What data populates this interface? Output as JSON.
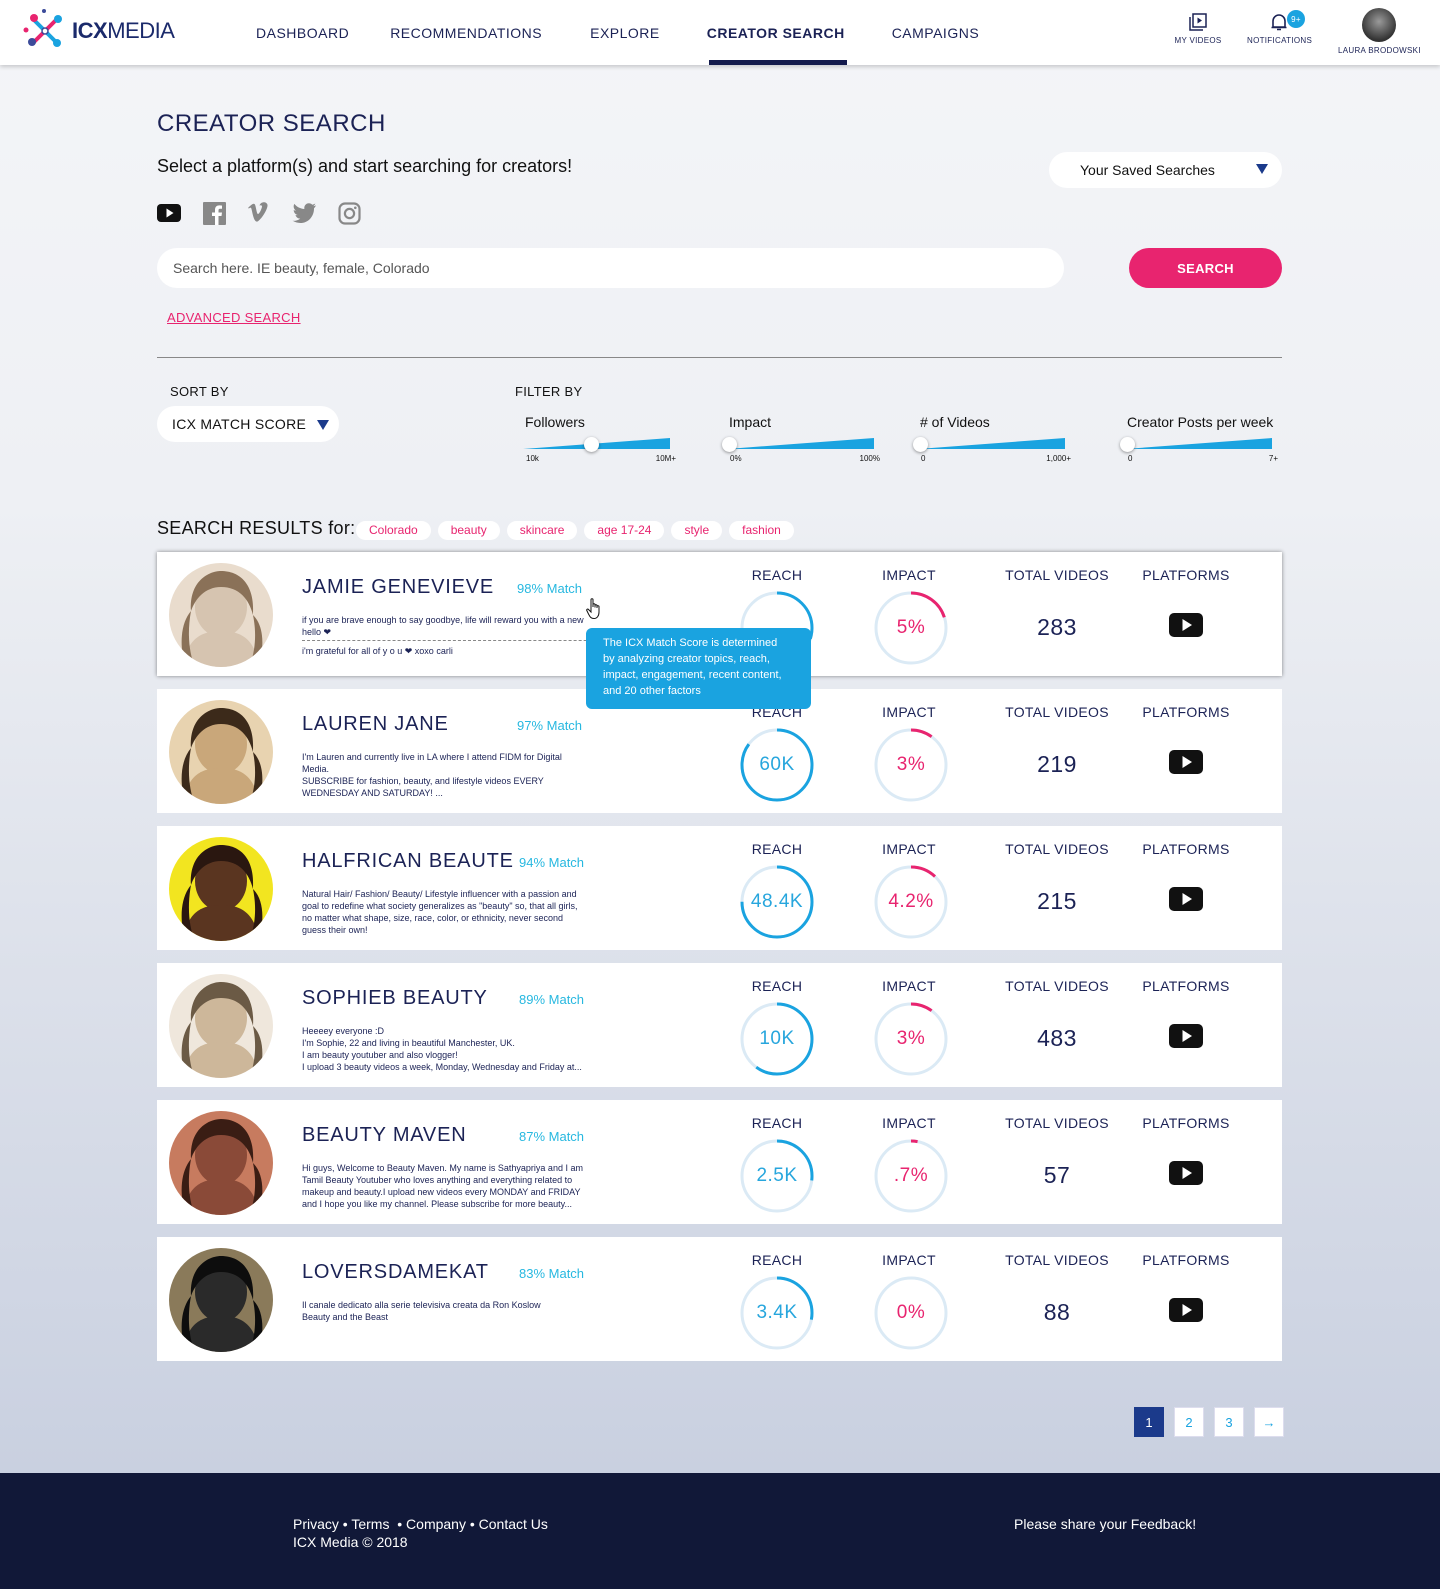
{
  "header": {
    "logo_text_bold": "ICX",
    "logo_text_rest": "MEDIA",
    "nav": [
      {
        "label": "DASHBOARD"
      },
      {
        "label": "RECOMMENDATIONS"
      },
      {
        "label": "EXPLORE"
      },
      {
        "label": "CREATOR SEARCH",
        "active": true
      },
      {
        "label": "CAMPAIGNS"
      }
    ],
    "my_videos_label": "MY VIDEOS",
    "notifications_label": "NOTIFICATIONS",
    "notifications_badge": "9+",
    "user_name": "LAURA BRODOWSKI"
  },
  "page": {
    "title": "CREATOR SEARCH",
    "subtitle": "Select a platform(s) and start searching for creators!",
    "saved_searches": "Your Saved Searches",
    "platform_icons": [
      "youtube-icon",
      "facebook-icon",
      "vimeo-icon",
      "twitter-icon",
      "instagram-icon"
    ],
    "search_placeholder": "Search here. IE beauty, female, Colorado",
    "search_button": "SEARCH",
    "advanced_search": "ADVANCED SEARCH"
  },
  "sort": {
    "label": "SORT BY",
    "value": "ICX MATCH SCORE"
  },
  "filter": {
    "label": "FILTER BY",
    "sliders": [
      {
        "name": "Followers",
        "min": "10k",
        "max": "10M+",
        "level": 0.45
      },
      {
        "name": "Impact",
        "min": "0%",
        "max": "100%",
        "level": 0.0
      },
      {
        "name": "# of Videos",
        "min": "0",
        "max": "1,000+",
        "level": 0.0
      },
      {
        "name": "Creator Posts per week",
        "min": "0",
        "max": "7+",
        "level": 0.0
      }
    ]
  },
  "results": {
    "label": "SEARCH RESULTS for:",
    "tags": [
      "Colorado",
      "beauty",
      "skincare",
      "age 17-24",
      "style",
      "fashion"
    ]
  },
  "metric_labels": {
    "reach": "REACH",
    "impact": "IMPACT",
    "total_videos": "TOTAL VIDEOS",
    "platforms": "PLATFORMS"
  },
  "creators": [
    {
      "name": "JAMIE GENEVIEVE",
      "match": "98% Match",
      "bio_lines": [
        "if you are brave enough to say goodbye, life will reward you with a new",
        "hello ❤",
        "i'm grateful for all of  y o u  ❤ xoxo carli"
      ],
      "reach": "",
      "reach_fill": 0.3,
      "impact": "5%",
      "impact_fill": 0.2,
      "total_videos": "283",
      "colors": [
        "#d6c4b0",
        "#8a7158",
        "#e9dccd"
      ]
    },
    {
      "name": "LAUREN JANE",
      "match": "97% Match",
      "bio_lines": [
        "I'm Lauren and currently live in LA where I attend FIDM for Digital",
        "Media.",
        "SUBSCRIBE for fashion, beauty, and lifestyle videos EVERY",
        "WEDNESDAY AND SATURDAY! ..."
      ],
      "reach": "60K",
      "reach_fill": 0.85,
      "impact": "3%",
      "impact_fill": 0.1,
      "total_videos": "219",
      "colors": [
        "#c9a77a",
        "#3c2a1a",
        "#e8d3b0"
      ]
    },
    {
      "name": "HALFRICAN BEAUTE",
      "match": "94% Match",
      "bio_lines": [
        "Natural Hair/ Fashion/ Beauty/ Lifestyle influencer with a passion and",
        "goal to redefine what society generalizes as \"beauty\" so, that all girls,",
        "no matter what shape, size, race, color, or ethnicity, never second",
        "guess their own!"
      ],
      "reach": "48.4K",
      "reach_fill": 0.75,
      "impact": "4.2%",
      "impact_fill": 0.12,
      "total_videos": "215",
      "colors": [
        "#5a3520",
        "#2a1710",
        "#f2e520"
      ]
    },
    {
      "name": "SOPHIEB BEAUTY",
      "match": "89% Match",
      "bio_lines": [
        "Heeeey everyone :D",
        "I'm Sophie, 22 and living in beautiful Manchester, UK.",
        "I am beauty youtuber and also vlogger!",
        "I upload 3 beauty videos a week, Monday, Wednesday and Friday at..."
      ],
      "reach": "10K",
      "reach_fill": 0.6,
      "impact": "3%",
      "impact_fill": 0.1,
      "total_videos": "483",
      "colors": [
        "#cdb79a",
        "#6b5a45",
        "#efe7dc"
      ]
    },
    {
      "name": "BEAUTY MAVEN",
      "match": "87% Match",
      "bio_lines": [
        "Hi guys, Welcome to Beauty Maven. My name is Sathyapriya and I am",
        "Tamil Beauty Youtuber who loves anything and everything related to",
        "makeup and beauty.I upload new videos every MONDAY and FRIDAY",
        "and I hope you like my channel. Please subscribe for more beauty..."
      ],
      "reach": "2.5K",
      "reach_fill": 0.27,
      "impact": ".7%",
      "impact_fill": 0.03,
      "total_videos": "57",
      "colors": [
        "#8a4a38",
        "#3a1d14",
        "#c77b5f"
      ]
    },
    {
      "name": "LOVERSDAMEKAT",
      "match": "83% Match",
      "bio_lines": [
        "Il canale dedicato alla serie televisiva creata da Ron Koslow",
        "Beauty and the Beast"
      ],
      "reach": "3.4K",
      "reach_fill": 0.28,
      "impact": "0%",
      "impact_fill": 0.0,
      "total_videos": "88",
      "colors": [
        "#2a2a2a",
        "#0d0d0d",
        "#8a7a5a"
      ]
    }
  ],
  "tooltip": {
    "lines": [
      "The ICX Match Score is determined",
      "by analyzing creator topics, reach,",
      "impact, engagement, recent content,",
      "and 20 other factors"
    ]
  },
  "pagination": {
    "pages": [
      "1",
      "2",
      "3"
    ],
    "active": "1",
    "next": "→"
  },
  "footer": {
    "links": [
      "Privacy",
      "Terms",
      "Company",
      "Contact Us"
    ],
    "copyright": "ICX Media © 2018",
    "feedback": "Please share your Feedback!"
  },
  "colors": {
    "accent_pink": "#e8246f",
    "accent_blue": "#27a6dd",
    "navy": "#1b2255",
    "footer_bg": "#111838"
  }
}
